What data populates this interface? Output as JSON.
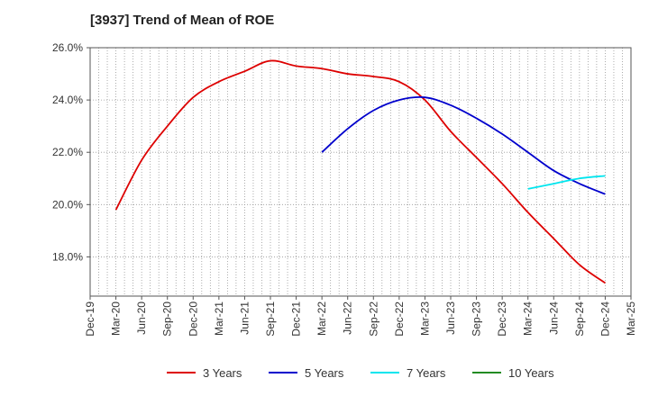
{
  "chart_data": {
    "type": "line",
    "title": "[3937]  Trend of Mean of ROE",
    "xlabel": "",
    "ylabel": "",
    "x_tick_labels": [
      "Dec-19",
      "Mar-20",
      "Jun-20",
      "Sep-20",
      "Dec-20",
      "Mar-21",
      "Jun-21",
      "Sep-21",
      "Dec-21",
      "Mar-22",
      "Jun-22",
      "Sep-22",
      "Dec-22",
      "Mar-23",
      "Jun-23",
      "Sep-23",
      "Dec-23",
      "Mar-24",
      "Jun-24",
      "Sep-24",
      "Dec-24",
      "Mar-25"
    ],
    "y_tick_labels": [
      "18.0%",
      "20.0%",
      "22.0%",
      "24.0%",
      "26.0%"
    ],
    "y_ticks": [
      18,
      20,
      22,
      24,
      26
    ],
    "ylim": [
      16.5,
      26.0
    ],
    "grid": true,
    "legend_position": "bottom",
    "series": [
      {
        "name": "3 Years",
        "color": "#dd0000",
        "points": [
          [
            "Mar-20",
            19.8
          ],
          [
            "Jun-20",
            21.7
          ],
          [
            "Sep-20",
            23.0
          ],
          [
            "Dec-20",
            24.1
          ],
          [
            "Mar-21",
            24.7
          ],
          [
            "Jun-21",
            25.1
          ],
          [
            "Sep-21",
            25.5
          ],
          [
            "Dec-21",
            25.3
          ],
          [
            "Mar-22",
            25.2
          ],
          [
            "Jun-22",
            25.0
          ],
          [
            "Sep-22",
            24.9
          ],
          [
            "Dec-22",
            24.7
          ],
          [
            "Mar-23",
            24.0
          ],
          [
            "Jun-23",
            22.8
          ],
          [
            "Sep-23",
            21.8
          ],
          [
            "Dec-23",
            20.8
          ],
          [
            "Mar-24",
            19.7
          ],
          [
            "Jun-24",
            18.7
          ],
          [
            "Sep-24",
            17.7
          ],
          [
            "Dec-24",
            17.0
          ]
        ]
      },
      {
        "name": "5 Years",
        "color": "#0000cc",
        "points": [
          [
            "Mar-22",
            22.0
          ],
          [
            "Jun-22",
            22.9
          ],
          [
            "Sep-22",
            23.6
          ],
          [
            "Dec-22",
            24.0
          ],
          [
            "Mar-23",
            24.1
          ],
          [
            "Jun-23",
            23.8
          ],
          [
            "Sep-23",
            23.3
          ],
          [
            "Dec-23",
            22.7
          ],
          [
            "Mar-24",
            22.0
          ],
          [
            "Jun-24",
            21.3
          ],
          [
            "Sep-24",
            20.8
          ],
          [
            "Dec-24",
            20.4
          ]
        ]
      },
      {
        "name": "7 Years",
        "color": "#00e5ee",
        "points": [
          [
            "Mar-24",
            20.6
          ],
          [
            "Jun-24",
            20.8
          ],
          [
            "Sep-24",
            21.0
          ],
          [
            "Dec-24",
            21.1
          ]
        ]
      },
      {
        "name": "10 Years",
        "color": "#228b22",
        "points": []
      }
    ]
  }
}
